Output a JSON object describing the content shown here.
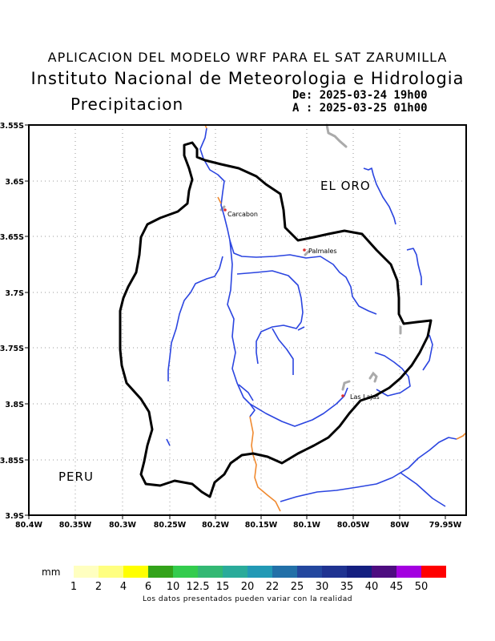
{
  "header": {
    "line1": "APLICACION DEL MODELO WRF PARA EL SAT ZARUMILLA",
    "line2": "Instituto Nacional de Meteorologia e Hidrologia",
    "parameter": "Precipitacion",
    "date_from": "De: 2025-03-24 19h00",
    "date_to": "A : 2025-03-25 01h00"
  },
  "map": {
    "lat_ticks": [
      "3.55S",
      "3.6S",
      "3.65S",
      "3.7S",
      "3.75S",
      "3.8S",
      "3.85S",
      "3.9S"
    ],
    "lon_ticks": [
      "80.4W",
      "80.35W",
      "80.3W",
      "80.25W",
      "80.2W",
      "80.15W",
      "80.1W",
      "80.05W",
      "80W",
      "79.95W"
    ],
    "region_labels": {
      "el_oro": "EL ORO",
      "peru": "PERU"
    },
    "towns": [
      {
        "name": "Carcabon"
      },
      {
        "name": "Palmales"
      },
      {
        "name": "Las Lajas"
      }
    ],
    "colors": {
      "boundary": "#000000",
      "rivers": "#2b45e0",
      "border_river": "#f08a30",
      "town_marker": "#e03030",
      "grey_lines": "#aaaaaa"
    }
  },
  "legend": {
    "unit": "mm",
    "labels": [
      "1",
      "2",
      "4",
      "6",
      "10",
      "12.5",
      "15",
      "20",
      "22",
      "25",
      "30",
      "35",
      "40",
      "45",
      "50"
    ],
    "colors": [
      "#ffffc0",
      "#ffff80",
      "#ffff00",
      "#33a31a",
      "#33cc4d",
      "#33b873",
      "#2aab9a",
      "#2299b5",
      "#2270a8",
      "#23479e",
      "#1f3391",
      "#141f80",
      "#4d0d80",
      "#a300e0",
      "#ff0000"
    ]
  },
  "footer": "Los datos presentados pueden variar con la realidad"
}
